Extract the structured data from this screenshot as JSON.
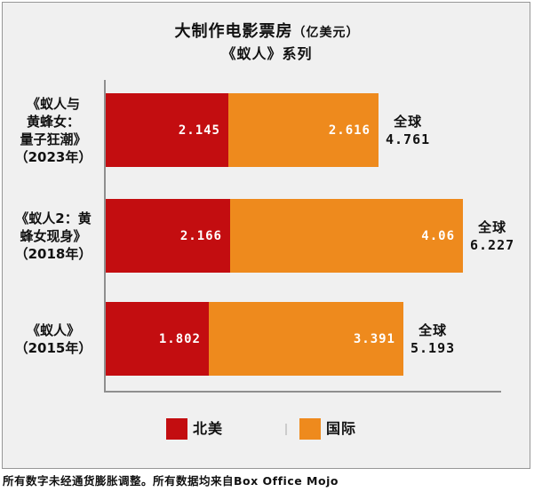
{
  "title": {
    "main": "大制作电影票房",
    "unit": "（亿美元）",
    "subtitle": "《蚁人》系列"
  },
  "colors": {
    "north_america": "#c30d10",
    "international": "#ee8a1d",
    "axis": "#8f8f8f",
    "frame_border": "#979797",
    "plot_background": "#f0f0f0",
    "value_text": "#ffffff"
  },
  "legend": {
    "items": [
      {
        "label": "北美",
        "color_key": "north_america"
      },
      {
        "label": "国际",
        "color_key": "international"
      }
    ]
  },
  "footer": {
    "text": "所有数字未经通货膨胀调整。所有数据均来自Box Office Mojo"
  },
  "chart_data": {
    "type": "bar",
    "orientation": "horizontal",
    "stacked": true,
    "title": "大制作电影票房（亿美元）",
    "subtitle": "《蚁人》系列",
    "unit": "亿美元",
    "grid": false,
    "legend_position": "bottom",
    "xlim": [
      0,
      7
    ],
    "total_word": "全球",
    "categories": [
      "《蚁人与黄蜂女：量子狂潮》（2023年）",
      "《蚁人2：黄蜂女现身》（2018年）",
      "《蚁人》（2015年）"
    ],
    "category_lines": [
      [
        "《蚁人与",
        "黄蜂女：",
        "量子狂潮》",
        "（2023年）"
      ],
      [
        "《蚁人2：黄",
        "蜂女现身》",
        "（2018年）"
      ],
      [
        "《蚁人》",
        "（2015年）"
      ]
    ],
    "series": [
      {
        "name": "北美",
        "color_key": "north_america",
        "values": [
          2.145,
          2.166,
          1.802
        ],
        "labels": [
          "2.145",
          "2.166",
          "1.802"
        ]
      },
      {
        "name": "国际",
        "color_key": "international",
        "values": [
          2.616,
          4.06,
          3.391
        ],
        "labels": [
          "2.616",
          "4.06",
          "3.391"
        ]
      }
    ],
    "totals": [
      4.761,
      6.227,
      5.193
    ],
    "total_labels": [
      "4.761",
      "6.227",
      "5.193"
    ]
  }
}
